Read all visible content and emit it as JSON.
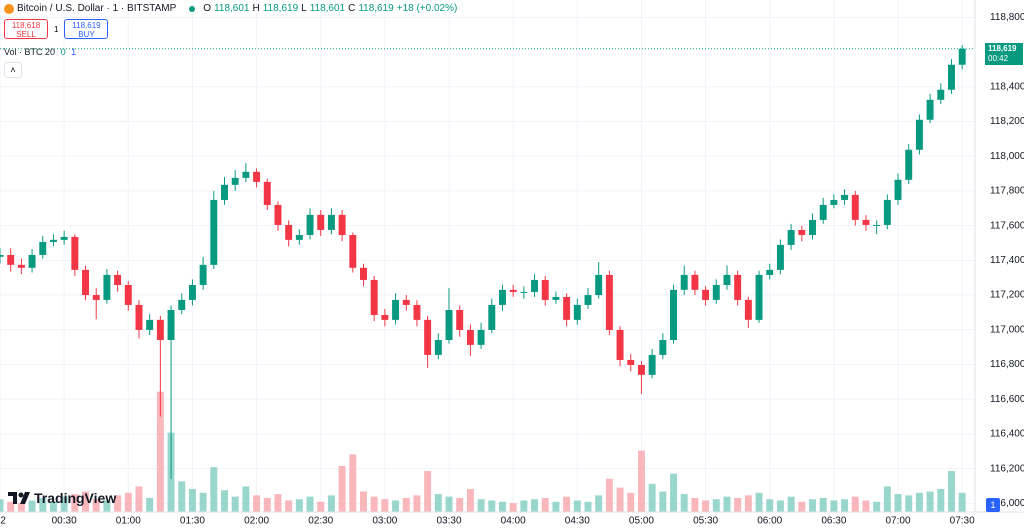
{
  "header": {
    "symbol": "Bitcoin / U.S. Dollar · 1 · BITSTAMP",
    "o_label": "O",
    "o": "118,601",
    "h_label": "H",
    "h": "118,619",
    "l_label": "L",
    "l": "118,601",
    "c_label": "C",
    "c": "118,619",
    "change": "+18 (+0.02%)"
  },
  "trade": {
    "sell_price": "118,618",
    "sell": "SELL",
    "qty": "1",
    "buy_price": "118,619",
    "buy": "BUY"
  },
  "volume_legend": {
    "name": "Vol · BTC",
    "length": "20",
    "v1": "0",
    "v2": "1"
  },
  "price_badge": {
    "price": "118,619",
    "countdown": "00:42"
  },
  "logo": "TradingView",
  "corner_box": "1",
  "chart_data": {
    "type": "candlestick",
    "up_color": "#089981",
    "down_color": "#f23645",
    "volume_up_color": "#7fcdc0",
    "volume_down_color": "#f7a5ab",
    "grid": true,
    "xlim": [
      0,
      456
    ],
    "ylim": [
      115950,
      118900
    ],
    "y2lim": [
      0,
      40
    ],
    "xticks": [
      {
        "value": 0,
        "label": "2"
      },
      {
        "value": 30,
        "label": "00:30"
      },
      {
        "value": 60,
        "label": "01:00"
      },
      {
        "value": 90,
        "label": "01:30"
      },
      {
        "value": 120,
        "label": "02:00"
      },
      {
        "value": 150,
        "label": "02:30"
      },
      {
        "value": 180,
        "label": "03:00"
      },
      {
        "value": 210,
        "label": "03:30"
      },
      {
        "value": 240,
        "label": "04:00"
      },
      {
        "value": 270,
        "label": "04:30"
      },
      {
        "value": 300,
        "label": "05:00"
      },
      {
        "value": 330,
        "label": "05:30"
      },
      {
        "value": 360,
        "label": "06:00"
      },
      {
        "value": 390,
        "label": "06:30"
      },
      {
        "value": 420,
        "label": "07:00"
      },
      {
        "value": 450,
        "label": "07:30"
      }
    ],
    "yticks": [
      {
        "value": 116000,
        "label": "116,000"
      },
      {
        "value": 116200,
        "label": "116,200"
      },
      {
        "value": 116400,
        "label": "116,400"
      },
      {
        "value": 116600,
        "label": "116,600"
      },
      {
        "value": 116800,
        "label": "116,800"
      },
      {
        "value": 117000,
        "label": "117,000"
      },
      {
        "value": 117200,
        "label": "117,200"
      },
      {
        "value": 117400,
        "label": "117,400"
      },
      {
        "value": 117600,
        "label": "117,600"
      },
      {
        "value": 117800,
        "label": "117,800"
      },
      {
        "value": 118000,
        "label": "118,000"
      },
      {
        "value": 118200,
        "label": "118,200"
      },
      {
        "value": 118400,
        "label": "118,400"
      },
      {
        "value": 118800,
        "label": "118,800"
      }
    ],
    "x": [
      0,
      5,
      10,
      15,
      20,
      25,
      30,
      35,
      40,
      45,
      50,
      55,
      60,
      65,
      70,
      75,
      80,
      85,
      90,
      95,
      100,
      105,
      110,
      115,
      120,
      125,
      130,
      135,
      140,
      145,
      150,
      155,
      160,
      165,
      170,
      175,
      180,
      185,
      190,
      195,
      200,
      205,
      210,
      215,
      220,
      225,
      230,
      235,
      240,
      245,
      250,
      255,
      260,
      265,
      270,
      275,
      280,
      285,
      290,
      295,
      300,
      305,
      310,
      315,
      320,
      325,
      330,
      335,
      340,
      345,
      350,
      355,
      360,
      365,
      370,
      375,
      380,
      385,
      390,
      395,
      400,
      405,
      410,
      415,
      420,
      425,
      430,
      435,
      440,
      445,
      450
    ],
    "open": [
      117420,
      117431,
      117374,
      117357,
      117431,
      117506,
      117518,
      117535,
      117345,
      117200,
      117172,
      117316,
      117258,
      117143,
      116999,
      117057,
      116941,
      117114,
      117172,
      117258,
      117374,
      117748,
      117835,
      117875,
      117910,
      117852,
      117719,
      117604,
      117518,
      117546,
      117662,
      117575,
      117662,
      117546,
      117357,
      117287,
      117085,
      117057,
      117172,
      117143,
      117057,
      116855,
      116941,
      117114,
      116999,
      116913,
      116999,
      117143,
      117230,
      117218,
      117218,
      117287,
      117172,
      117189,
      117057,
      117143,
      117200,
      117316,
      116999,
      116826,
      116797,
      116740,
      116855,
      116941,
      117230,
      117316,
      117230,
      117172,
      117258,
      117316,
      117172,
      117057,
      117316,
      117345,
      117489,
      117575,
      117546,
      117633,
      117719,
      117748,
      117777,
      117633,
      117604,
      117604,
      117748,
      117864,
      118037,
      118210,
      118325,
      118383,
      118527
    ],
    "high": [
      117470,
      117470,
      117410,
      117465,
      117540,
      117550,
      117570,
      117550,
      117370,
      117240,
      117350,
      117340,
      117280,
      117170,
      117090,
      117080,
      117140,
      117210,
      117290,
      117420,
      117800,
      117880,
      117920,
      117960,
      117930,
      117870,
      117740,
      117630,
      117580,
      117700,
      117690,
      117700,
      117690,
      117560,
      117380,
      117310,
      117120,
      117210,
      117200,
      117170,
      117080,
      116980,
      117240,
      117140,
      117030,
      117040,
      117180,
      117260,
      117260,
      117250,
      117320,
      117310,
      117220,
      117210,
      117180,
      117240,
      117390,
      117340,
      117020,
      116860,
      116820,
      116890,
      116980,
      117260,
      117370,
      117340,
      117250,
      117290,
      117370,
      117340,
      117190,
      117340,
      117380,
      117520,
      117610,
      117600,
      117670,
      117760,
      117780,
      117810,
      117800,
      117660,
      117630,
      117780,
      117900,
      118070,
      118240,
      118360,
      118420,
      118560,
      118640
    ],
    "low": [
      117380,
      117335,
      117320,
      117330,
      117410,
      117480,
      117490,
      117310,
      117170,
      117060,
      117150,
      117220,
      117110,
      116950,
      116970,
      116500,
      116140,
      117090,
      117140,
      117230,
      117350,
      117720,
      117800,
      117850,
      117820,
      117690,
      117570,
      117480,
      117490,
      117520,
      117540,
      117550,
      117510,
      117330,
      117250,
      117050,
      117020,
      117030,
      117110,
      117020,
      116780,
      116830,
      116920,
      116960,
      116850,
      116890,
      116980,
      117110,
      117190,
      117180,
      117190,
      117140,
      117150,
      117020,
      117030,
      117120,
      117180,
      116970,
      116790,
      116760,
      116630,
      116720,
      116830,
      116920,
      117200,
      117200,
      117140,
      117150,
      117230,
      117140,
      117010,
      117040,
      117290,
      117320,
      117460,
      117510,
      117520,
      117610,
      117700,
      117720,
      117600,
      117570,
      117550,
      117580,
      117720,
      117840,
      118010,
      118190,
      118300,
      118360,
      118500
    ],
    "close": [
      117431,
      117374,
      117357,
      117431,
      117506,
      117518,
      117535,
      117345,
      117200,
      117172,
      117316,
      117258,
      117143,
      116999,
      117057,
      116941,
      117114,
      117172,
      117258,
      117374,
      117748,
      117835,
      117875,
      117910,
      117852,
      117719,
      117604,
      117518,
      117546,
      117662,
      117575,
      117662,
      117546,
      117357,
      117287,
      117085,
      117057,
      117172,
      117143,
      117057,
      116855,
      116941,
      117114,
      116999,
      116913,
      116999,
      117143,
      117230,
      117218,
      117218,
      117287,
      117172,
      117189,
      117057,
      117143,
      117200,
      117316,
      116999,
      116826,
      116797,
      116740,
      116855,
      116941,
      117230,
      117316,
      117230,
      117172,
      117258,
      117316,
      117172,
      117057,
      117316,
      117345,
      117489,
      117575,
      117546,
      117633,
      117719,
      117748,
      117777,
      117633,
      117604,
      117604,
      117748,
      117864,
      118037,
      118210,
      118325,
      118383,
      118527,
      118619
    ],
    "volume": [
      1.0,
      0.8,
      0.7,
      0.9,
      1.1,
      0.8,
      1.2,
      1.4,
      1.6,
      1.0,
      0.9,
      1.3,
      1.5,
      2.0,
      1.1,
      9.4,
      6.2,
      2.4,
      1.8,
      1.5,
      3.5,
      1.7,
      1.2,
      2.0,
      1.3,
      1.1,
      1.4,
      0.9,
      1.0,
      1.2,
      0.8,
      1.3,
      3.6,
      4.5,
      1.6,
      1.2,
      1.0,
      0.9,
      1.1,
      1.3,
      3.2,
      1.4,
      1.2,
      1.1,
      1.8,
      1.0,
      0.9,
      0.8,
      0.7,
      0.9,
      1.0,
      1.1,
      0.8,
      1.2,
      0.9,
      0.8,
      1.3,
      2.6,
      1.9,
      1.5,
      4.8,
      2.2,
      1.6,
      3.0,
      1.4,
      1.1,
      0.9,
      1.0,
      1.2,
      1.1,
      1.3,
      1.5,
      1.0,
      0.9,
      1.2,
      0.8,
      1.0,
      1.1,
      0.9,
      1.0,
      1.2,
      0.9,
      0.8,
      2.0,
      1.4,
      1.3,
      1.5,
      1.6,
      1.8,
      3.2,
      1.5
    ]
  }
}
